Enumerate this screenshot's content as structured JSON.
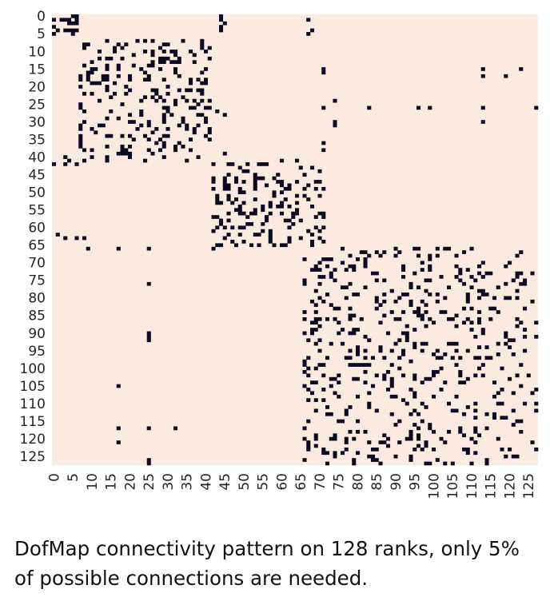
{
  "caption": "DofMap connectivity pattern on 128 ranks, only 5% of possible connections are needed.",
  "colors": {
    "background": "#faeadf",
    "cell": "#0d0b21",
    "tick_text": "#262626"
  },
  "chart_data": {
    "type": "heatmap",
    "title": "",
    "xlabel": "",
    "ylabel": "",
    "n_ranks": 128,
    "xlim": [
      0,
      127
    ],
    "ylim": [
      0,
      127
    ],
    "x_ticks": [
      0,
      5,
      10,
      15,
      20,
      25,
      30,
      35,
      40,
      45,
      50,
      55,
      60,
      65,
      70,
      75,
      80,
      85,
      90,
      95,
      100,
      105,
      110,
      115,
      120,
      125
    ],
    "y_ticks": [
      0,
      5,
      10,
      15,
      20,
      25,
      30,
      35,
      40,
      45,
      50,
      55,
      60,
      65,
      70,
      75,
      80,
      85,
      90,
      95,
      100,
      105,
      110,
      115,
      120,
      125
    ],
    "value_range": [
      0,
      1
    ],
    "connected_fraction": 0.05,
    "blocks": [
      {
        "rows": [
          0,
          6
        ],
        "cols": [
          0,
          7
        ],
        "density": 0.5
      },
      {
        "rows": [
          7,
          42
        ],
        "cols": [
          7,
          42
        ],
        "density": 0.2
      },
      {
        "rows": [
          42,
          66
        ],
        "cols": [
          42,
          72
        ],
        "density": 0.2
      },
      {
        "rows": [
          66,
          128
        ],
        "cols": [
          66,
          128
        ],
        "density": 0.14
      }
    ],
    "off_block_cells": [
      [
        0,
        44
      ],
      [
        1,
        44
      ],
      [
        2,
        45
      ],
      [
        3,
        44
      ],
      [
        4,
        44
      ],
      [
        1,
        67
      ],
      [
        5,
        67
      ],
      [
        4,
        68
      ],
      [
        15,
        71
      ],
      [
        16,
        71
      ],
      [
        15,
        123
      ],
      [
        15,
        113
      ],
      [
        17,
        113
      ],
      [
        17,
        119
      ],
      [
        26,
        71
      ],
      [
        26,
        83
      ],
      [
        26,
        96
      ],
      [
        26,
        99
      ],
      [
        26,
        113
      ],
      [
        26,
        127
      ],
      [
        30,
        113
      ],
      [
        32,
        41
      ],
      [
        33,
        41
      ],
      [
        27,
        43
      ],
      [
        28,
        45
      ],
      [
        36,
        71
      ],
      [
        38,
        71
      ],
      [
        39,
        45
      ],
      [
        41,
        60
      ],
      [
        41,
        64
      ],
      [
        40,
        3
      ],
      [
        41,
        4
      ],
      [
        42,
        3
      ],
      [
        42,
        0
      ],
      [
        42,
        6
      ],
      [
        41,
        8
      ],
      [
        62,
        1
      ],
      [
        63,
        6
      ],
      [
        63,
        3
      ],
      [
        63,
        8
      ],
      [
        66,
        9
      ],
      [
        66,
        17
      ],
      [
        66,
        25
      ],
      [
        66,
        42
      ],
      [
        66,
        76
      ],
      [
        69,
        72
      ],
      [
        76,
        25
      ],
      [
        90,
        25
      ],
      [
        91,
        25
      ],
      [
        92,
        25
      ],
      [
        105,
        17
      ],
      [
        117,
        17
      ],
      [
        117,
        25
      ],
      [
        117,
        32
      ],
      [
        121,
        17
      ],
      [
        127,
        25
      ],
      [
        126,
        25
      ],
      [
        30,
        74
      ],
      [
        31,
        74
      ],
      [
        24,
        74
      ]
    ]
  }
}
